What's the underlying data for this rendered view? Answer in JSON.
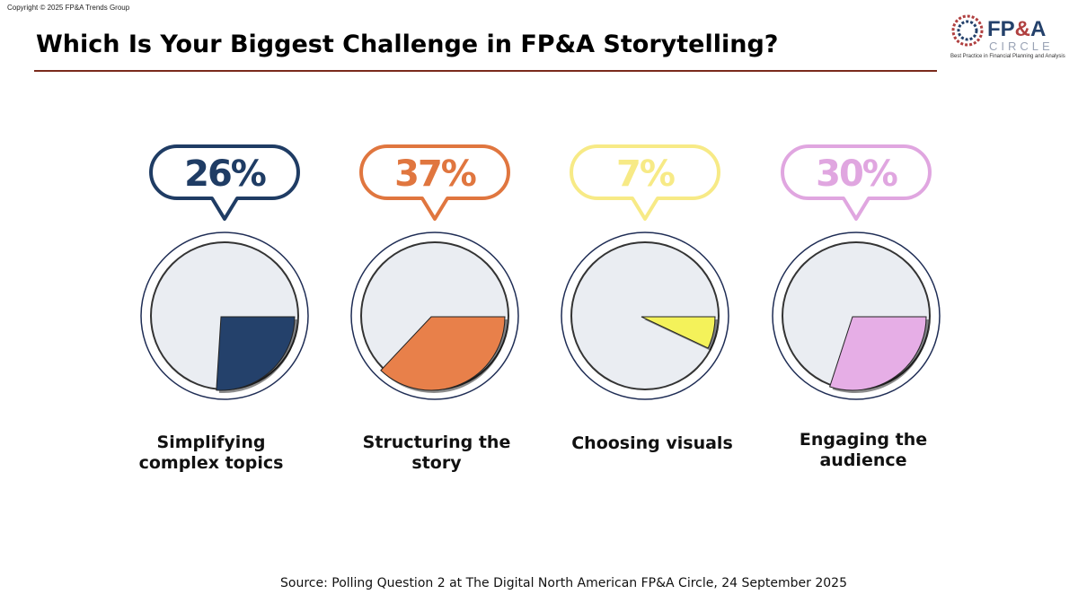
{
  "copyright": "Copyright © 2025 FP&A Trends Group",
  "title": "Which Is Your Biggest Challenge in FP&A Storytelling?",
  "logo": {
    "text": "FP&A CIRCLE",
    "tagline": "Best Practice in Financial Planning and Analysis"
  },
  "source": "Source: Polling Question 2 at The Digital North American FP&A Circle, 24 September 2025",
  "chart_data": {
    "type": "pie",
    "unit": "%",
    "categories": [
      "Simplifying complex topics",
      "Structuring the story",
      "Choosing visuals",
      "Engaging the audience"
    ],
    "values": [
      26,
      37,
      7,
      30
    ],
    "value_labels": [
      "26%",
      "37%",
      "7%",
      "30%"
    ],
    "colors": [
      "#24416b",
      "#e8804a",
      "#f4f25a",
      "#e6aee6"
    ],
    "outline_colors": [
      "#1f3c64",
      "#e0763f",
      "#f7ea86",
      "#e0a6e0"
    ],
    "background_color": "#eaedf2"
  }
}
